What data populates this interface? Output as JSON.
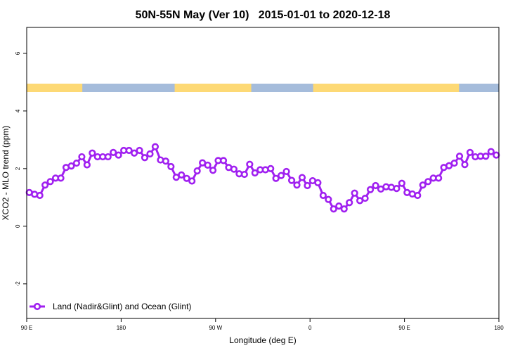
{
  "chart_data": {
    "type": "line",
    "title": "50N-55N May (Ver 10)   2015-01-01 to 2020-12-18",
    "xlabel": "Longitude (deg E)",
    "ylabel": "XCO2 - MLO trend (ppm)",
    "xlim": [
      90,
      540
    ],
    "ylim": [
      -3.2,
      6.9
    ],
    "x_ticks": [
      {
        "value": 90,
        "label": "90 E"
      },
      {
        "value": 180,
        "label": "180"
      },
      {
        "value": 270,
        "label": "90 W"
      },
      {
        "value": 360,
        "label": "0"
      },
      {
        "value": 450,
        "label": "90 E"
      },
      {
        "value": 540,
        "label": "180"
      }
    ],
    "y_ticks": [
      {
        "value": -2,
        "label": "-2"
      },
      {
        "value": 0,
        "label": "0"
      },
      {
        "value": 2,
        "label": "2"
      },
      {
        "value": 4,
        "label": "4"
      },
      {
        "value": 6,
        "label": "6"
      }
    ],
    "grid": false,
    "legend": {
      "placement": "bottom-left"
    },
    "land_ocean_strip": {
      "land_color": "#fdd975",
      "ocean_color": "#a5bcdb",
      "land_segments": [
        [
          90,
          143
        ],
        [
          231,
          304
        ],
        [
          363,
          502
        ]
      ]
    },
    "series": [
      {
        "name": "Land (Nadir&Glint) and Ocean (Glint)",
        "color": "#a020f0",
        "x_start": 92.5,
        "x_step": 5,
        "values": [
          1.17,
          1.11,
          1.07,
          1.43,
          1.55,
          1.67,
          1.67,
          2.04,
          2.09,
          2.19,
          2.41,
          2.13,
          2.54,
          2.41,
          2.41,
          2.41,
          2.56,
          2.47,
          2.63,
          2.63,
          2.54,
          2.63,
          2.38,
          2.51,
          2.76,
          2.3,
          2.26,
          2.07,
          1.7,
          1.78,
          1.66,
          1.57,
          1.92,
          2.2,
          2.12,
          1.94,
          2.28,
          2.28,
          2.04,
          1.98,
          1.82,
          1.8,
          2.15,
          1.85,
          1.96,
          1.96,
          2.0,
          1.66,
          1.76,
          1.9,
          1.59,
          1.43,
          1.69,
          1.41,
          1.58,
          1.51,
          1.07,
          0.93,
          0.6,
          0.7,
          0.6,
          0.82,
          1.15,
          0.89,
          0.97,
          1.27,
          1.41,
          1.29,
          1.37,
          1.35,
          1.31,
          1.49,
          1.17,
          1.12,
          1.07,
          1.43,
          1.55,
          1.67,
          1.67,
          2.04,
          2.1,
          2.19,
          2.43,
          2.14,
          2.56,
          2.41,
          2.43,
          2.43,
          2.59,
          2.47
        ]
      }
    ]
  }
}
